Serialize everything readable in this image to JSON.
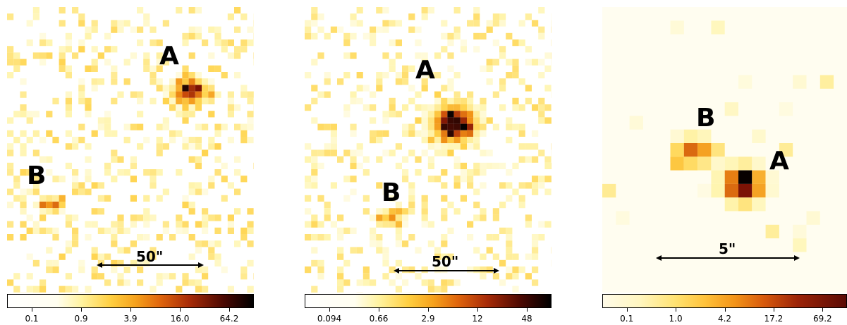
{
  "panels": [
    {
      "sources": [
        "A",
        "B"
      ],
      "scale_label": "50\"",
      "colorbar": {
        "ticks": [
          "0.1",
          "0.9",
          "3.9",
          "16.0",
          "64.2"
        ]
      }
    },
    {
      "sources": [
        "A",
        "B"
      ],
      "scale_label": "50\"",
      "colorbar": {
        "ticks": [
          "0.094",
          "0.66",
          "2.9",
          "12",
          "48"
        ]
      }
    },
    {
      "sources": [
        "B",
        "A"
      ],
      "scale_label": "5\"",
      "colorbar": {
        "ticks": [
          "0.1",
          "1.0",
          "4.2",
          "17.2",
          "69.2"
        ]
      }
    }
  ],
  "colormap": {
    "name": "afmhot_r",
    "stops": [
      "#ffffff",
      "#fff5b0",
      "#ffd24a",
      "#f29417",
      "#c94a0a",
      "#7a1205",
      "#000000"
    ]
  }
}
